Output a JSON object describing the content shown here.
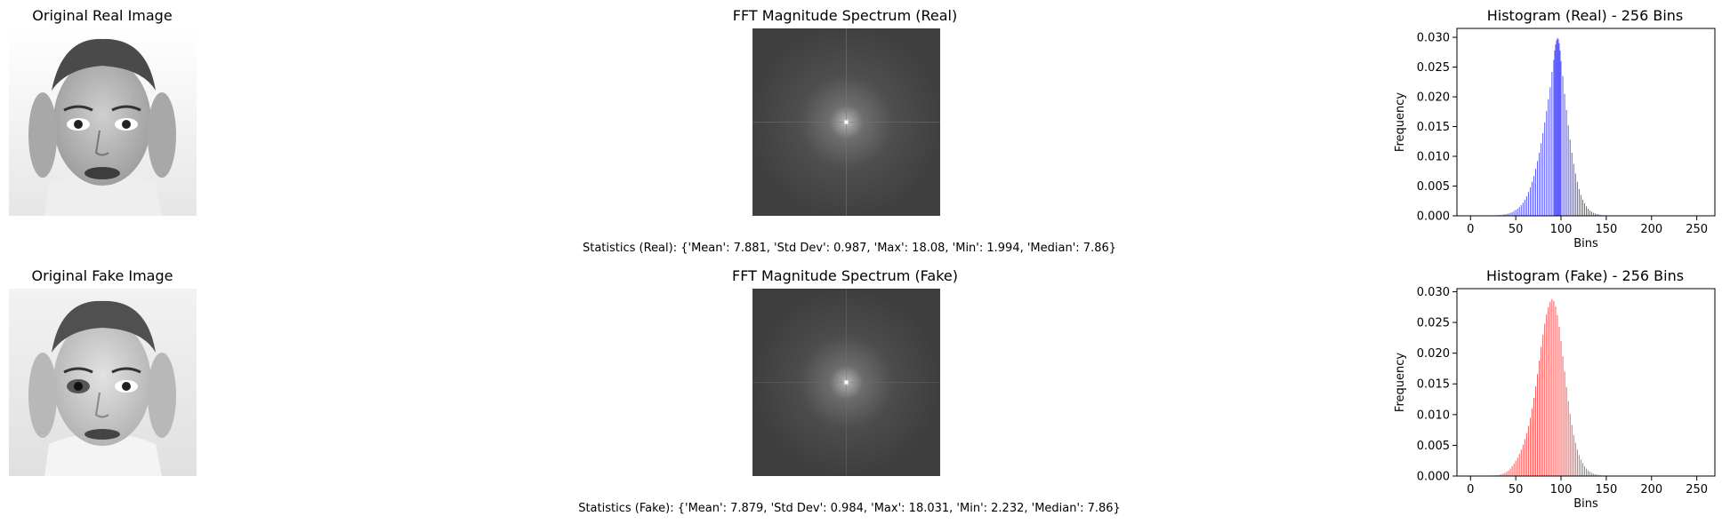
{
  "rows": [
    {
      "image_title": "Original Real Image",
      "fft_title": "FFT Magnitude Spectrum (Real)",
      "hist_title": "Histogram (Real) - 256 Bins",
      "stats_text": "Statistics (Real): {'Mean': 7.881, 'Std Dev': 0.987, 'Max': 18.08, 'Min': 1.994, 'Median': 7.86}",
      "bar_color": "#3b3bff"
    },
    {
      "image_title": "Original Fake Image",
      "fft_title": "FFT Magnitude Spectrum (Fake)",
      "hist_title": "Histogram (Fake) - 256 Bins",
      "stats_text": "Statistics (Fake): {'Mean': 7.879, 'Std Dev': 0.984, 'Max': 18.031, 'Min': 2.232, 'Median': 7.86}",
      "bar_color": "#ff3b3b"
    }
  ],
  "chart_data": [
    {
      "type": "bar",
      "title": "Histogram (Real) - 256 Bins",
      "xlabel": "Bins",
      "ylabel": "Frequency",
      "xlim": [
        -15,
        270
      ],
      "ylim": [
        0,
        0.0315
      ],
      "xticks": [
        0,
        50,
        100,
        150,
        200,
        250
      ],
      "yticks": [
        0.0,
        0.005,
        0.01,
        0.015,
        0.02,
        0.025,
        0.03
      ],
      "ytick_labels": [
        "0.000",
        "0.005",
        "0.010",
        "0.015",
        "0.020",
        "0.025",
        "0.030"
      ],
      "color": "#3b3bff",
      "bins": [
        [
          20,
          3e-05
        ],
        [
          25,
          5e-05
        ],
        [
          28,
          8e-05
        ],
        [
          30,
          0.0001
        ],
        [
          32,
          0.00012
        ],
        [
          34,
          0.00015
        ],
        [
          36,
          0.0002
        ],
        [
          38,
          0.00025
        ],
        [
          40,
          0.0003
        ],
        [
          42,
          0.0004
        ],
        [
          44,
          0.0005
        ],
        [
          46,
          0.0006
        ],
        [
          48,
          0.0008
        ],
        [
          50,
          0.001
        ],
        [
          52,
          0.0012
        ],
        [
          54,
          0.0015
        ],
        [
          56,
          0.0018
        ],
        [
          58,
          0.0022
        ],
        [
          60,
          0.0027
        ],
        [
          62,
          0.0033
        ],
        [
          64,
          0.004
        ],
        [
          66,
          0.0048
        ],
        [
          68,
          0.0057
        ],
        [
          70,
          0.0067
        ],
        [
          72,
          0.0079
        ],
        [
          74,
          0.0092
        ],
        [
          76,
          0.0106
        ],
        [
          78,
          0.0122
        ],
        [
          80,
          0.0139
        ],
        [
          82,
          0.0157
        ],
        [
          84,
          0.0176
        ],
        [
          86,
          0.0196
        ],
        [
          88,
          0.0216
        ],
        [
          90,
          0.0242
        ],
        [
          92,
          0.0262
        ],
        [
          93,
          0.0278
        ],
        [
          94,
          0.0288
        ],
        [
          95,
          0.0295
        ],
        [
          96,
          0.0299
        ],
        [
          97,
          0.0297
        ],
        [
          98,
          0.029
        ],
        [
          99,
          0.0278
        ],
        [
          100,
          0.026
        ],
        [
          102,
          0.0235
        ],
        [
          104,
          0.0205
        ],
        [
          106,
          0.0178
        ],
        [
          108,
          0.0152
        ],
        [
          110,
          0.0128
        ],
        [
          112,
          0.0106
        ],
        [
          114,
          0.0087
        ],
        [
          116,
          0.0071
        ],
        [
          118,
          0.0057
        ],
        [
          120,
          0.0045
        ],
        [
          122,
          0.0035
        ],
        [
          124,
          0.0027
        ],
        [
          126,
          0.0021
        ],
        [
          128,
          0.0016
        ],
        [
          130,
          0.0012
        ],
        [
          132,
          0.0009
        ],
        [
          134,
          0.0007
        ],
        [
          136,
          0.0005
        ],
        [
          138,
          0.0004
        ],
        [
          140,
          0.0003
        ],
        [
          142,
          0.00022
        ],
        [
          144,
          0.00016
        ],
        [
          146,
          0.00012
        ],
        [
          148,
          9e-05
        ],
        [
          150,
          6e-05
        ],
        [
          155,
          4e-05
        ],
        [
          160,
          2e-05
        ],
        [
          170,
          1e-05
        ]
      ]
    },
    {
      "type": "bar",
      "title": "Histogram (Fake) - 256 Bins",
      "xlabel": "Bins",
      "ylabel": "Frequency",
      "xlim": [
        -15,
        270
      ],
      "ylim": [
        0,
        0.0305
      ],
      "xticks": [
        0,
        50,
        100,
        150,
        200,
        250
      ],
      "yticks": [
        0.0,
        0.005,
        0.01,
        0.015,
        0.02,
        0.025,
        0.03
      ],
      "ytick_labels": [
        "0.000",
        "0.005",
        "0.010",
        "0.015",
        "0.020",
        "0.025",
        "0.030"
      ],
      "color": "#ff3b3b",
      "bins": [
        [
          15,
          3e-05
        ],
        [
          20,
          5e-05
        ],
        [
          24,
          8e-05
        ],
        [
          26,
          0.0001
        ],
        [
          28,
          0.00012
        ],
        [
          30,
          0.00015
        ],
        [
          32,
          0.0002
        ],
        [
          34,
          0.00028
        ],
        [
          36,
          0.00038
        ],
        [
          38,
          0.0005
        ],
        [
          40,
          0.0007
        ],
        [
          42,
          0.0009
        ],
        [
          44,
          0.0012
        ],
        [
          46,
          0.0016
        ],
        [
          48,
          0.002
        ],
        [
          50,
          0.0025
        ],
        [
          52,
          0.003
        ],
        [
          54,
          0.0036
        ],
        [
          56,
          0.0043
        ],
        [
          58,
          0.0051
        ],
        [
          60,
          0.006
        ],
        [
          62,
          0.007
        ],
        [
          64,
          0.0082
        ],
        [
          66,
          0.0095
        ],
        [
          68,
          0.011
        ],
        [
          70,
          0.0127
        ],
        [
          72,
          0.0146
        ],
        [
          74,
          0.0166
        ],
        [
          76,
          0.0188
        ],
        [
          78,
          0.021
        ],
        [
          80,
          0.023
        ],
        [
          82,
          0.0248
        ],
        [
          84,
          0.0263
        ],
        [
          86,
          0.0275
        ],
        [
          88,
          0.0284
        ],
        [
          90,
          0.0288
        ],
        [
          92,
          0.0285
        ],
        [
          94,
          0.0276
        ],
        [
          96,
          0.0262
        ],
        [
          98,
          0.0243
        ],
        [
          100,
          0.022
        ],
        [
          102,
          0.0195
        ],
        [
          104,
          0.017
        ],
        [
          106,
          0.0145
        ],
        [
          108,
          0.0122
        ],
        [
          110,
          0.0101
        ],
        [
          112,
          0.0083
        ],
        [
          114,
          0.0067
        ],
        [
          116,
          0.0054
        ],
        [
          118,
          0.0043
        ],
        [
          120,
          0.0034
        ],
        [
          122,
          0.0027
        ],
        [
          124,
          0.0021
        ],
        [
          126,
          0.0016
        ],
        [
          128,
          0.0012
        ],
        [
          130,
          0.0009
        ],
        [
          132,
          0.0007
        ],
        [
          134,
          0.0005
        ],
        [
          136,
          0.0004
        ],
        [
          138,
          0.0003
        ],
        [
          140,
          0.00022
        ],
        [
          142,
          0.00016
        ],
        [
          144,
          0.00012
        ],
        [
          146,
          9e-05
        ],
        [
          148,
          7e-05
        ],
        [
          150,
          5e-05
        ],
        [
          155,
          3e-05
        ],
        [
          160,
          2e-05
        ],
        [
          170,
          1e-05
        ]
      ]
    }
  ]
}
